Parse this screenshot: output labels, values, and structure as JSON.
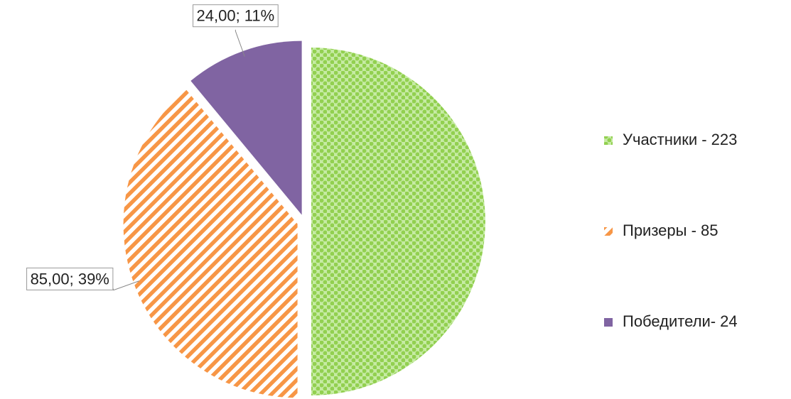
{
  "chart_data": {
    "type": "pie",
    "categories": [
      "Участники - 223",
      "Призеры - 85",
      "Победители- 24"
    ],
    "values": [
      109,
      85,
      24
    ],
    "value_labels": [
      null,
      "85,00; 39%",
      "24,00; 11%"
    ],
    "colors": [
      "#92d050",
      "#f79646",
      "#8064a2"
    ],
    "patterns": [
      "dots",
      "stripes",
      "solid"
    ],
    "legend": "right"
  }
}
